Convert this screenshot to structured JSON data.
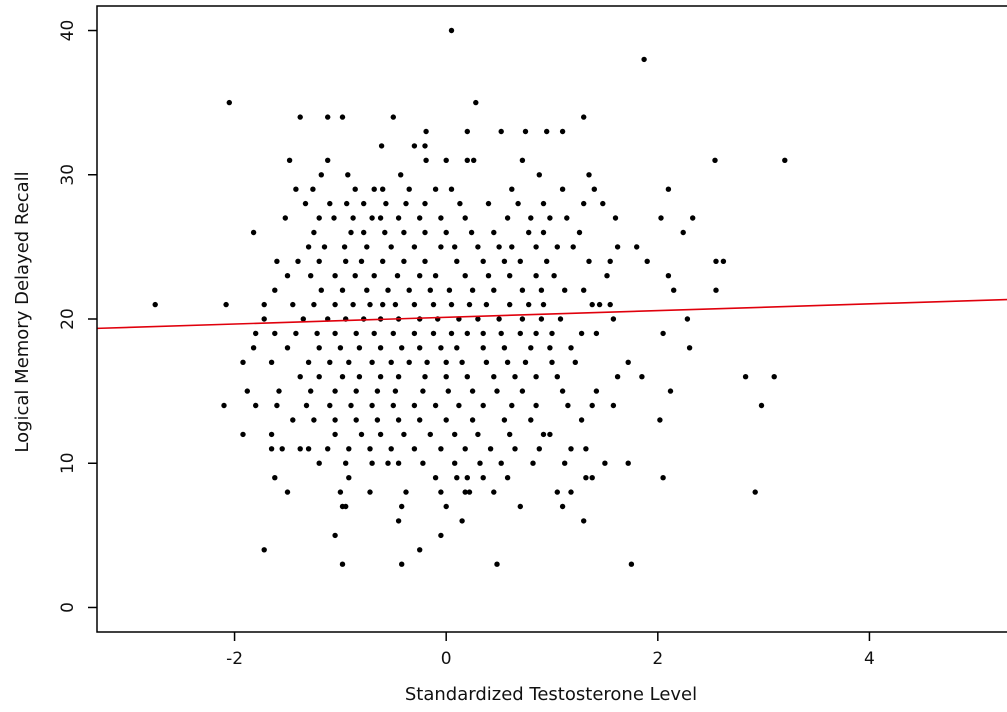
{
  "chart_data": {
    "type": "scatter",
    "title": "",
    "xlabel": "Standardized Testosterone Level",
    "ylabel": "Logical Memory Delayed Recall",
    "xlim": [
      -3.3,
      5.3
    ],
    "ylim": [
      -1.7,
      41.7
    ],
    "x_ticks": [
      -2,
      0,
      2,
      4
    ],
    "y_ticks": [
      0,
      10,
      20,
      30,
      40
    ],
    "x_tick_labels": [
      "-2",
      "0",
      "2",
      "4"
    ],
    "y_tick_labels": [
      "0",
      "10",
      "20",
      "30",
      "40"
    ],
    "grid": false,
    "legend": "none",
    "colors": {
      "points": "#000000",
      "fit_line": "#e0000c",
      "axes": "#000000"
    },
    "fit_line": {
      "x": [
        -3.3,
        5.3
      ],
      "y": [
        19.35,
        21.35
      ]
    },
    "points": [
      [
        0.05,
        40
      ],
      [
        1.87,
        38
      ],
      [
        -2.05,
        35
      ],
      [
        0.28,
        35
      ],
      [
        -1.38,
        34
      ],
      [
        -1.12,
        34
      ],
      [
        -0.98,
        34
      ],
      [
        -0.5,
        34
      ],
      [
        1.3,
        34
      ],
      [
        -0.19,
        33
      ],
      [
        0.2,
        33
      ],
      [
        0.52,
        33
      ],
      [
        0.75,
        33
      ],
      [
        0.95,
        33
      ],
      [
        1.1,
        33
      ],
      [
        -0.61,
        32
      ],
      [
        -0.3,
        32
      ],
      [
        -0.2,
        32
      ],
      [
        -1.48,
        31
      ],
      [
        -1.12,
        31
      ],
      [
        -0.19,
        31
      ],
      [
        0.0,
        31
      ],
      [
        0.2,
        31
      ],
      [
        0.26,
        31
      ],
      [
        0.72,
        31
      ],
      [
        2.54,
        31
      ],
      [
        3.2,
        31
      ],
      [
        -1.18,
        30
      ],
      [
        -0.93,
        30
      ],
      [
        -0.43,
        30
      ],
      [
        0.88,
        30
      ],
      [
        1.35,
        30
      ],
      [
        -1.42,
        29
      ],
      [
        -1.26,
        29
      ],
      [
        -0.86,
        29
      ],
      [
        -0.68,
        29
      ],
      [
        -0.6,
        29
      ],
      [
        -0.35,
        29
      ],
      [
        -0.1,
        29
      ],
      [
        0.05,
        29
      ],
      [
        0.62,
        29
      ],
      [
        1.1,
        29
      ],
      [
        1.4,
        29
      ],
      [
        2.1,
        29
      ],
      [
        -1.33,
        28
      ],
      [
        -1.1,
        28
      ],
      [
        -0.94,
        28
      ],
      [
        -0.78,
        28
      ],
      [
        -0.57,
        28
      ],
      [
        -0.38,
        28
      ],
      [
        -0.2,
        28
      ],
      [
        0.13,
        28
      ],
      [
        0.4,
        28
      ],
      [
        0.68,
        28
      ],
      [
        0.92,
        28
      ],
      [
        1.3,
        28
      ],
      [
        1.48,
        28
      ],
      [
        -1.52,
        27
      ],
      [
        -1.2,
        27
      ],
      [
        -1.06,
        27
      ],
      [
        -0.88,
        27
      ],
      [
        -0.7,
        27
      ],
      [
        -0.62,
        27
      ],
      [
        -0.45,
        27
      ],
      [
        -0.25,
        27
      ],
      [
        -0.05,
        27
      ],
      [
        0.18,
        27
      ],
      [
        0.58,
        27
      ],
      [
        0.8,
        27
      ],
      [
        0.98,
        27
      ],
      [
        1.14,
        27
      ],
      [
        1.6,
        27
      ],
      [
        2.03,
        27
      ],
      [
        2.33,
        27
      ],
      [
        -1.82,
        26
      ],
      [
        -1.25,
        26
      ],
      [
        -0.9,
        26
      ],
      [
        -0.78,
        26
      ],
      [
        -0.58,
        26
      ],
      [
        -0.4,
        26
      ],
      [
        -0.2,
        26
      ],
      [
        0.0,
        26
      ],
      [
        0.24,
        26
      ],
      [
        0.45,
        26
      ],
      [
        0.78,
        26
      ],
      [
        0.92,
        26
      ],
      [
        1.26,
        26
      ],
      [
        2.24,
        26
      ],
      [
        -1.3,
        25
      ],
      [
        -1.15,
        25
      ],
      [
        -0.96,
        25
      ],
      [
        -0.75,
        25
      ],
      [
        -0.52,
        25
      ],
      [
        -0.3,
        25
      ],
      [
        -0.05,
        25
      ],
      [
        0.08,
        25
      ],
      [
        0.3,
        25
      ],
      [
        0.5,
        25
      ],
      [
        0.62,
        25
      ],
      [
        0.85,
        25
      ],
      [
        1.05,
        25
      ],
      [
        1.2,
        25
      ],
      [
        1.62,
        25
      ],
      [
        1.8,
        25
      ],
      [
        -1.6,
        24
      ],
      [
        -1.4,
        24
      ],
      [
        -1.2,
        24
      ],
      [
        -0.95,
        24
      ],
      [
        -0.8,
        24
      ],
      [
        -0.6,
        24
      ],
      [
        -0.4,
        24
      ],
      [
        -0.2,
        24
      ],
      [
        0.1,
        24
      ],
      [
        0.35,
        24
      ],
      [
        0.55,
        24
      ],
      [
        0.7,
        24
      ],
      [
        0.95,
        24
      ],
      [
        1.35,
        24
      ],
      [
        1.55,
        24
      ],
      [
        1.9,
        24
      ],
      [
        2.55,
        24
      ],
      [
        2.62,
        24
      ],
      [
        -1.5,
        23
      ],
      [
        -1.28,
        23
      ],
      [
        -1.05,
        23
      ],
      [
        -0.86,
        23
      ],
      [
        -0.68,
        23
      ],
      [
        -0.46,
        23
      ],
      [
        -0.25,
        23
      ],
      [
        -0.1,
        23
      ],
      [
        0.18,
        23
      ],
      [
        0.4,
        23
      ],
      [
        0.6,
        23
      ],
      [
        0.85,
        23
      ],
      [
        1.02,
        23
      ],
      [
        1.52,
        23
      ],
      [
        2.1,
        23
      ],
      [
        -1.62,
        22
      ],
      [
        -1.18,
        22
      ],
      [
        -0.98,
        22
      ],
      [
        -0.75,
        22
      ],
      [
        -0.55,
        22
      ],
      [
        -0.35,
        22
      ],
      [
        -0.15,
        22
      ],
      [
        0.03,
        22
      ],
      [
        0.25,
        22
      ],
      [
        0.45,
        22
      ],
      [
        0.72,
        22
      ],
      [
        0.9,
        22
      ],
      [
        1.12,
        22
      ],
      [
        1.3,
        22
      ],
      [
        2.15,
        22
      ],
      [
        2.55,
        22
      ],
      [
        -2.75,
        21
      ],
      [
        -2.08,
        21
      ],
      [
        -1.72,
        21
      ],
      [
        -1.45,
        21
      ],
      [
        -1.25,
        21
      ],
      [
        -1.05,
        21
      ],
      [
        -0.88,
        21
      ],
      [
        -0.72,
        21
      ],
      [
        -0.6,
        21
      ],
      [
        -0.48,
        21
      ],
      [
        -0.3,
        21
      ],
      [
        -0.12,
        21
      ],
      [
        0.05,
        21
      ],
      [
        0.22,
        21
      ],
      [
        0.38,
        21
      ],
      [
        0.6,
        21
      ],
      [
        0.78,
        21
      ],
      [
        0.92,
        21
      ],
      [
        1.38,
        21
      ],
      [
        1.45,
        21
      ],
      [
        1.55,
        21
      ],
      [
        -1.72,
        20
      ],
      [
        -1.35,
        20
      ],
      [
        -1.12,
        20
      ],
      [
        -0.95,
        20
      ],
      [
        -0.78,
        20
      ],
      [
        -0.62,
        20
      ],
      [
        -0.45,
        20
      ],
      [
        -0.25,
        20
      ],
      [
        -0.08,
        20
      ],
      [
        0.12,
        20
      ],
      [
        0.3,
        20
      ],
      [
        0.5,
        20
      ],
      [
        0.72,
        20
      ],
      [
        0.9,
        20
      ],
      [
        1.08,
        20
      ],
      [
        1.58,
        20
      ],
      [
        2.28,
        20
      ],
      [
        -1.8,
        19
      ],
      [
        -1.62,
        19
      ],
      [
        -1.42,
        19
      ],
      [
        -1.22,
        19
      ],
      [
        -1.05,
        19
      ],
      [
        -0.85,
        19
      ],
      [
        -0.68,
        19
      ],
      [
        -0.5,
        19
      ],
      [
        -0.3,
        19
      ],
      [
        -0.12,
        19
      ],
      [
        0.05,
        19
      ],
      [
        0.2,
        19
      ],
      [
        0.35,
        19
      ],
      [
        0.52,
        19
      ],
      [
        0.7,
        19
      ],
      [
        0.85,
        19
      ],
      [
        1.0,
        19
      ],
      [
        1.28,
        19
      ],
      [
        1.42,
        19
      ],
      [
        2.05,
        19
      ],
      [
        -1.82,
        18
      ],
      [
        -1.5,
        18
      ],
      [
        -1.2,
        18
      ],
      [
        -1.0,
        18
      ],
      [
        -0.82,
        18
      ],
      [
        -0.62,
        18
      ],
      [
        -0.42,
        18
      ],
      [
        -0.25,
        18
      ],
      [
        -0.05,
        18
      ],
      [
        0.1,
        18
      ],
      [
        0.35,
        18
      ],
      [
        0.55,
        18
      ],
      [
        0.8,
        18
      ],
      [
        0.98,
        18
      ],
      [
        1.18,
        18
      ],
      [
        2.3,
        18
      ],
      [
        -1.92,
        17
      ],
      [
        -1.65,
        17
      ],
      [
        -1.3,
        17
      ],
      [
        -1.1,
        17
      ],
      [
        -0.92,
        17
      ],
      [
        -0.7,
        17
      ],
      [
        -0.52,
        17
      ],
      [
        -0.35,
        17
      ],
      [
        -0.18,
        17
      ],
      [
        0.0,
        17
      ],
      [
        0.15,
        17
      ],
      [
        0.38,
        17
      ],
      [
        0.58,
        17
      ],
      [
        0.75,
        17
      ],
      [
        1.0,
        17
      ],
      [
        1.22,
        17
      ],
      [
        1.72,
        17
      ],
      [
        -1.38,
        16
      ],
      [
        -1.2,
        16
      ],
      [
        -0.98,
        16
      ],
      [
        -0.82,
        16
      ],
      [
        -0.62,
        16
      ],
      [
        -0.45,
        16
      ],
      [
        -0.2,
        16
      ],
      [
        0.0,
        16
      ],
      [
        0.2,
        16
      ],
      [
        0.45,
        16
      ],
      [
        0.65,
        16
      ],
      [
        0.85,
        16
      ],
      [
        1.05,
        16
      ],
      [
        1.62,
        16
      ],
      [
        1.85,
        16
      ],
      [
        2.83,
        16
      ],
      [
        3.1,
        16
      ],
      [
        -1.88,
        15
      ],
      [
        -1.58,
        15
      ],
      [
        -1.28,
        15
      ],
      [
        -1.05,
        15
      ],
      [
        -0.85,
        15
      ],
      [
        -0.65,
        15
      ],
      [
        -0.48,
        15
      ],
      [
        -0.22,
        15
      ],
      [
        0.02,
        15
      ],
      [
        0.25,
        15
      ],
      [
        0.48,
        15
      ],
      [
        0.72,
        15
      ],
      [
        1.1,
        15
      ],
      [
        1.42,
        15
      ],
      [
        2.12,
        15
      ],
      [
        -2.1,
        14
      ],
      [
        -1.8,
        14
      ],
      [
        -1.6,
        14
      ],
      [
        -1.32,
        14
      ],
      [
        -1.1,
        14
      ],
      [
        -0.9,
        14
      ],
      [
        -0.7,
        14
      ],
      [
        -0.5,
        14
      ],
      [
        -0.3,
        14
      ],
      [
        -0.1,
        14
      ],
      [
        0.12,
        14
      ],
      [
        0.35,
        14
      ],
      [
        0.62,
        14
      ],
      [
        0.85,
        14
      ],
      [
        1.15,
        14
      ],
      [
        1.38,
        14
      ],
      [
        1.58,
        14
      ],
      [
        2.98,
        14
      ],
      [
        -1.45,
        13
      ],
      [
        -1.25,
        13
      ],
      [
        -1.05,
        13
      ],
      [
        -0.85,
        13
      ],
      [
        -0.65,
        13
      ],
      [
        -0.45,
        13
      ],
      [
        -0.25,
        13
      ],
      [
        0.0,
        13
      ],
      [
        0.25,
        13
      ],
      [
        0.55,
        13
      ],
      [
        0.8,
        13
      ],
      [
        1.28,
        13
      ],
      [
        2.02,
        13
      ],
      [
        -1.92,
        12
      ],
      [
        -1.65,
        12
      ],
      [
        -1.05,
        12
      ],
      [
        -0.8,
        12
      ],
      [
        -0.62,
        12
      ],
      [
        -0.4,
        12
      ],
      [
        -0.15,
        12
      ],
      [
        0.08,
        12
      ],
      [
        0.3,
        12
      ],
      [
        0.6,
        12
      ],
      [
        0.92,
        12
      ],
      [
        0.98,
        12
      ],
      [
        -1.65,
        11
      ],
      [
        -1.55,
        11
      ],
      [
        -1.38,
        11
      ],
      [
        -1.3,
        11
      ],
      [
        -1.12,
        11
      ],
      [
        -0.92,
        11
      ],
      [
        -0.72,
        11
      ],
      [
        -0.52,
        11
      ],
      [
        -0.3,
        11
      ],
      [
        -0.05,
        11
      ],
      [
        0.18,
        11
      ],
      [
        0.42,
        11
      ],
      [
        0.65,
        11
      ],
      [
        0.88,
        11
      ],
      [
        1.18,
        11
      ],
      [
        1.32,
        11
      ],
      [
        -1.2,
        10
      ],
      [
        -0.95,
        10
      ],
      [
        -0.7,
        10
      ],
      [
        -0.55,
        10
      ],
      [
        -0.45,
        10
      ],
      [
        -0.22,
        10
      ],
      [
        0.08,
        10
      ],
      [
        0.32,
        10
      ],
      [
        0.52,
        10
      ],
      [
        0.82,
        10
      ],
      [
        1.12,
        10
      ],
      [
        1.5,
        10
      ],
      [
        1.72,
        10
      ],
      [
        -1.62,
        9
      ],
      [
        -0.92,
        9
      ],
      [
        -0.1,
        9
      ],
      [
        0.1,
        9
      ],
      [
        0.2,
        9
      ],
      [
        0.35,
        9
      ],
      [
        0.58,
        9
      ],
      [
        1.32,
        9
      ],
      [
        1.38,
        9
      ],
      [
        2.05,
        9
      ],
      [
        -1.5,
        8
      ],
      [
        -1.0,
        8
      ],
      [
        -0.72,
        8
      ],
      [
        -0.38,
        8
      ],
      [
        -0.05,
        8
      ],
      [
        0.18,
        8
      ],
      [
        0.22,
        8
      ],
      [
        0.45,
        8
      ],
      [
        1.05,
        8
      ],
      [
        1.18,
        8
      ],
      [
        2.92,
        8
      ],
      [
        -0.98,
        7
      ],
      [
        -0.95,
        7
      ],
      [
        -0.42,
        7
      ],
      [
        0.0,
        7
      ],
      [
        0.7,
        7
      ],
      [
        1.1,
        7
      ],
      [
        -0.45,
        6
      ],
      [
        0.15,
        6
      ],
      [
        1.3,
        6
      ],
      [
        -1.05,
        5
      ],
      [
        -0.05,
        5
      ],
      [
        -1.72,
        4
      ],
      [
        -0.25,
        4
      ],
      [
        -0.98,
        3
      ],
      [
        -0.42,
        3
      ],
      [
        0.48,
        3
      ],
      [
        1.75,
        3
      ]
    ]
  }
}
